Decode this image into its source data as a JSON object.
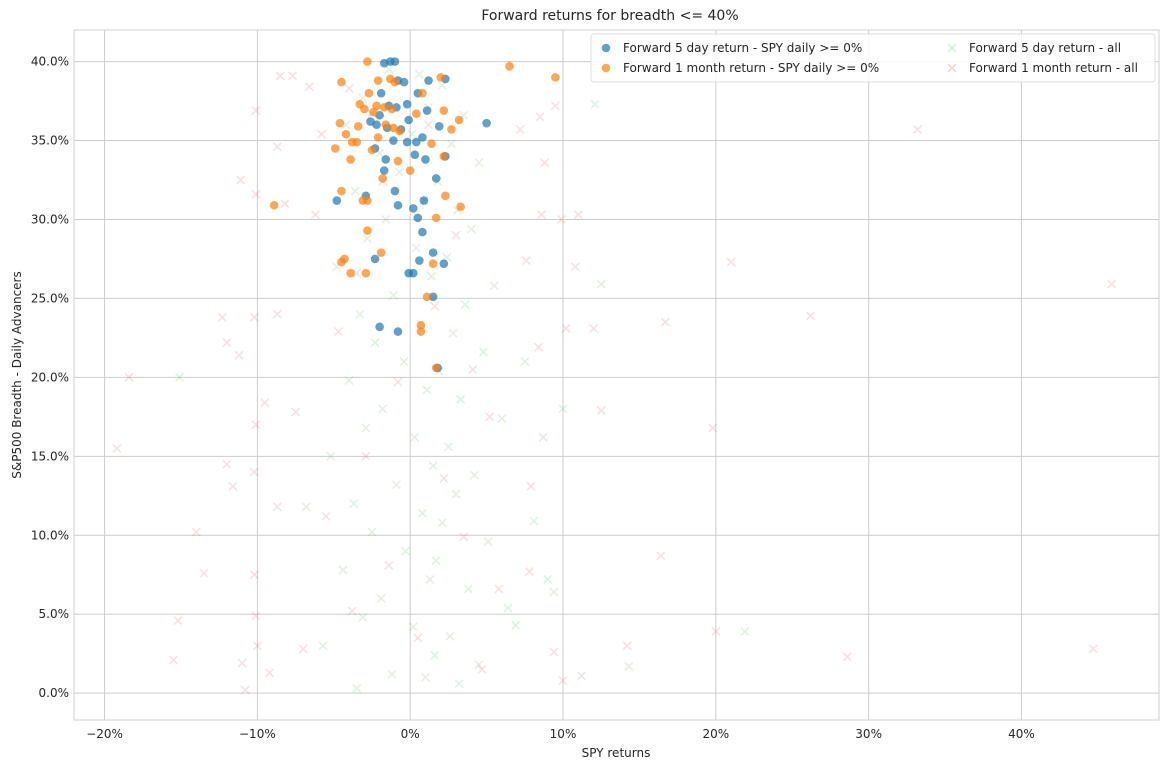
{
  "chart_data": {
    "type": "scatter",
    "title": "Forward returns for breadth <= 40%",
    "xlabel": "SPY returns",
    "ylabel": "S&P500 Breadth - Daily Advancers",
    "xlim": [
      -0.22,
      0.49
    ],
    "ylim": [
      -0.017,
      0.42
    ],
    "xticks": [
      -0.2,
      -0.1,
      0.0,
      0.1,
      0.2,
      0.3,
      0.4
    ],
    "xtick_labels": [
      "−20%",
      "−10%",
      "0%",
      "10%",
      "20%",
      "30%",
      "40%"
    ],
    "yticks": [
      0.0,
      0.05,
      0.1,
      0.15,
      0.2,
      0.25,
      0.3,
      0.35,
      0.4
    ],
    "ytick_labels": [
      "0.0%",
      "5.0%",
      "10.0%",
      "15.0%",
      "20.0%",
      "25.0%",
      "30.0%",
      "35.0%",
      "40.0%"
    ],
    "grid": true,
    "legend_position": "top-right",
    "series": [
      {
        "name": "Forward 5 day return - SPY daily >= 0%",
        "marker": "circle",
        "color": "#1f77b4",
        "points": [
          [
            -0.017,
            0.399
          ],
          [
            -0.013,
            0.4
          ],
          [
            -0.01,
            0.4
          ],
          [
            -0.008,
            0.388
          ],
          [
            -0.004,
            0.387
          ],
          [
            -0.019,
            0.38
          ],
          [
            0.005,
            0.38
          ],
          [
            -0.014,
            0.372
          ],
          [
            -0.009,
            0.371
          ],
          [
            -0.002,
            0.373
          ],
          [
            -0.02,
            0.366
          ],
          [
            0.011,
            0.369
          ],
          [
            0.05,
            0.361
          ],
          [
            -0.026,
            0.362
          ],
          [
            -0.022,
            0.36
          ],
          [
            -0.001,
            0.363
          ],
          [
            -0.006,
            0.357
          ],
          [
            -0.015,
            0.358
          ],
          [
            0.019,
            0.359
          ],
          [
            -0.011,
            0.35
          ],
          [
            -0.002,
            0.349
          ],
          [
            0.004,
            0.349
          ],
          [
            0.008,
            0.352
          ],
          [
            -0.023,
            0.345
          ],
          [
            -0.016,
            0.338
          ],
          [
            0.003,
            0.341
          ],
          [
            0.01,
            0.338
          ],
          [
            0.023,
            0.34
          ],
          [
            -0.017,
            0.331
          ],
          [
            0.017,
            0.326
          ],
          [
            -0.048,
            0.312
          ],
          [
            -0.029,
            0.315
          ],
          [
            -0.01,
            0.318
          ],
          [
            -0.008,
            0.309
          ],
          [
            0.002,
            0.307
          ],
          [
            0.009,
            0.312
          ],
          [
            0.005,
            0.301
          ],
          [
            0.008,
            0.292
          ],
          [
            -0.023,
            0.275
          ],
          [
            0.006,
            0.274
          ],
          [
            0.015,
            0.279
          ],
          [
            0.022,
            0.272
          ],
          [
            -0.001,
            0.266
          ],
          [
            0.002,
            0.266
          ],
          [
            0.015,
            0.251
          ],
          [
            -0.02,
            0.232
          ],
          [
            -0.008,
            0.229
          ],
          [
            0.018,
            0.206
          ],
          [
            0.023,
            0.389
          ],
          [
            0.012,
            0.388
          ]
        ]
      },
      {
        "name": "Forward 1 month return - SPY daily >= 0%",
        "marker": "circle",
        "color": "#ff7f0e",
        "points": [
          [
            -0.028,
            0.4
          ],
          [
            -0.045,
            0.387
          ],
          [
            -0.021,
            0.388
          ],
          [
            -0.013,
            0.389
          ],
          [
            -0.01,
            0.387
          ],
          [
            0.065,
            0.397
          ],
          [
            0.095,
            0.39
          ],
          [
            0.02,
            0.39
          ],
          [
            -0.027,
            0.38
          ],
          [
            0.008,
            0.38
          ],
          [
            -0.033,
            0.373
          ],
          [
            -0.022,
            0.372
          ],
          [
            -0.017,
            0.371
          ],
          [
            -0.012,
            0.37
          ],
          [
            -0.03,
            0.37
          ],
          [
            0.004,
            0.367
          ],
          [
            0.022,
            0.369
          ],
          [
            -0.024,
            0.368
          ],
          [
            0.032,
            0.363
          ],
          [
            -0.046,
            0.361
          ],
          [
            -0.034,
            0.359
          ],
          [
            -0.016,
            0.36
          ],
          [
            -0.011,
            0.358
          ],
          [
            -0.007,
            0.356
          ],
          [
            0.027,
            0.357
          ],
          [
            -0.042,
            0.354
          ],
          [
            -0.035,
            0.349
          ],
          [
            -0.038,
            0.349
          ],
          [
            -0.049,
            0.345
          ],
          [
            -0.025,
            0.344
          ],
          [
            -0.021,
            0.352
          ],
          [
            0.014,
            0.348
          ],
          [
            0.022,
            0.34
          ],
          [
            -0.039,
            0.338
          ],
          [
            -0.008,
            0.337
          ],
          [
            0.0,
            0.331
          ],
          [
            0.023,
            0.315
          ],
          [
            -0.045,
            0.318
          ],
          [
            -0.031,
            0.312
          ],
          [
            -0.028,
            0.312
          ],
          [
            -0.089,
            0.309
          ],
          [
            0.033,
            0.308
          ],
          [
            0.017,
            0.301
          ],
          [
            -0.028,
            0.293
          ],
          [
            -0.019,
            0.279
          ],
          [
            -0.043,
            0.275
          ],
          [
            -0.045,
            0.273
          ],
          [
            -0.039,
            0.266
          ],
          [
            -0.029,
            0.266
          ],
          [
            0.015,
            0.272
          ],
          [
            0.011,
            0.251
          ],
          [
            0.007,
            0.233
          ],
          [
            0.007,
            0.229
          ],
          [
            0.017,
            0.206
          ],
          [
            -0.018,
            0.326
          ]
        ]
      },
      {
        "name": "Forward 5 day return - all",
        "marker": "x",
        "color": "#2ca02c",
        "points": [
          [
            -0.014,
            0.395
          ],
          [
            0.006,
            0.392
          ],
          [
            0.021,
            0.385
          ],
          [
            -0.031,
            0.377
          ],
          [
            0.012,
            0.371
          ],
          [
            0.035,
            0.366
          ],
          [
            -0.042,
            0.36
          ],
          [
            0.001,
            0.354
          ],
          [
            0.027,
            0.348
          ],
          [
            -0.02,
            0.342
          ],
          [
            0.045,
            0.336
          ],
          [
            -0.007,
            0.33
          ],
          [
            0.018,
            0.324
          ],
          [
            -0.036,
            0.318
          ],
          [
            0.009,
            0.312
          ],
          [
            0.031,
            0.306
          ],
          [
            -0.016,
            0.3
          ],
          [
            0.04,
            0.294
          ],
          [
            -0.028,
            0.288
          ],
          [
            0.004,
            0.282
          ],
          [
            0.024,
            0.276
          ],
          [
            -0.048,
            0.27
          ],
          [
            0.014,
            0.264
          ],
          [
            0.055,
            0.258
          ],
          [
            -0.011,
            0.252
          ],
          [
            0.036,
            0.246
          ],
          [
            -0.033,
            0.24
          ],
          [
            0.007,
            0.234
          ],
          [
            0.028,
            0.228
          ],
          [
            -0.023,
            0.222
          ],
          [
            0.048,
            0.216
          ],
          [
            -0.004,
            0.21
          ],
          [
            0.019,
            0.204
          ],
          [
            -0.04,
            0.198
          ],
          [
            0.011,
            0.192
          ],
          [
            0.033,
            0.186
          ],
          [
            -0.018,
            0.18
          ],
          [
            0.06,
            0.174
          ],
          [
            -0.029,
            0.168
          ],
          [
            0.003,
            0.162
          ],
          [
            0.025,
            0.156
          ],
          [
            -0.052,
            0.15
          ],
          [
            0.015,
            0.144
          ],
          [
            0.042,
            0.138
          ],
          [
            -0.009,
            0.132
          ],
          [
            0.03,
            0.126
          ],
          [
            -0.037,
            0.12
          ],
          [
            0.008,
            0.114
          ],
          [
            0.021,
            0.108
          ],
          [
            -0.025,
            0.102
          ],
          [
            0.051,
            0.096
          ],
          [
            -0.003,
            0.09
          ],
          [
            0.017,
            0.084
          ],
          [
            -0.044,
            0.078
          ],
          [
            0.013,
            0.072
          ],
          [
            0.038,
            0.066
          ],
          [
            -0.019,
            0.06
          ],
          [
            0.064,
            0.054
          ],
          [
            -0.031,
            0.048
          ],
          [
            0.002,
            0.042
          ],
          [
            0.026,
            0.036
          ],
          [
            -0.057,
            0.03
          ],
          [
            0.016,
            0.024
          ],
          [
            0.045,
            0.018
          ],
          [
            -0.012,
            0.012
          ],
          [
            0.032,
            0.006
          ],
          [
            -0.035,
            0.003
          ],
          [
            0.01,
            0.01
          ],
          [
            0.069,
            0.043
          ],
          [
            -0.068,
            0.118
          ],
          [
            0.094,
            0.064
          ],
          [
            0.081,
            0.109
          ],
          [
            -0.151,
            0.2
          ],
          [
            0.1,
            0.18
          ],
          [
            0.121,
            0.373
          ],
          [
            0.125,
            0.259
          ],
          [
            0.143,
            0.017
          ],
          [
            0.219,
            0.039
          ],
          [
            0.09,
            0.072
          ],
          [
            0.075,
            0.21
          ]
        ]
      },
      {
        "name": "Forward 1 month return - all",
        "marker": "x",
        "color": "#d62728",
        "points": [
          [
            -0.085,
            0.391
          ],
          [
            -0.077,
            0.391
          ],
          [
            -0.066,
            0.384
          ],
          [
            -0.101,
            0.369
          ],
          [
            -0.058,
            0.354
          ],
          [
            -0.087,
            0.346
          ],
          [
            -0.111,
            0.325
          ],
          [
            -0.101,
            0.316
          ],
          [
            -0.082,
            0.31
          ],
          [
            -0.062,
            0.303
          ],
          [
            -0.123,
            0.238
          ],
          [
            -0.112,
            0.214
          ],
          [
            -0.102,
            0.238
          ],
          [
            -0.087,
            0.24
          ],
          [
            -0.184,
            0.2
          ],
          [
            -0.12,
            0.222
          ],
          [
            -0.095,
            0.184
          ],
          [
            -0.075,
            0.178
          ],
          [
            -0.101,
            0.17
          ],
          [
            -0.192,
            0.155
          ],
          [
            -0.12,
            0.145
          ],
          [
            -0.116,
            0.131
          ],
          [
            -0.102,
            0.14
          ],
          [
            -0.087,
            0.118
          ],
          [
            -0.14,
            0.102
          ],
          [
            -0.135,
            0.076
          ],
          [
            -0.102,
            0.075
          ],
          [
            -0.101,
            0.049
          ],
          [
            -0.152,
            0.046
          ],
          [
            -0.11,
            0.019
          ],
          [
            -0.155,
            0.021
          ],
          [
            -0.108,
            0.002
          ],
          [
            -0.092,
            0.013
          ],
          [
            -0.1,
            0.03
          ],
          [
            -0.07,
            0.028
          ],
          [
            0.085,
            0.365
          ],
          [
            0.095,
            0.372
          ],
          [
            0.072,
            0.357
          ],
          [
            0.088,
            0.336
          ],
          [
            0.11,
            0.303
          ],
          [
            0.099,
            0.3
          ],
          [
            0.086,
            0.303
          ],
          [
            0.076,
            0.274
          ],
          [
            0.108,
            0.27
          ],
          [
            0.12,
            0.231
          ],
          [
            0.102,
            0.231
          ],
          [
            0.084,
            0.219
          ],
          [
            0.087,
            0.162
          ],
          [
            0.125,
            0.179
          ],
          [
            0.079,
            0.131
          ],
          [
            0.078,
            0.077
          ],
          [
            0.164,
            0.087
          ],
          [
            0.1,
            0.008
          ],
          [
            0.112,
            0.011
          ],
          [
            0.142,
            0.03
          ],
          [
            0.2,
            0.039
          ],
          [
            0.286,
            0.023
          ],
          [
            0.447,
            0.028
          ],
          [
            0.459,
            0.259
          ],
          [
            0.332,
            0.357
          ],
          [
            0.262,
            0.239
          ],
          [
            0.21,
            0.273
          ],
          [
            0.167,
            0.235
          ],
          [
            0.198,
            0.168
          ],
          [
            0.094,
            0.026
          ],
          [
            -0.04,
            0.383
          ],
          [
            -0.025,
            0.367
          ],
          [
            0.012,
            0.36
          ],
          [
            -0.018,
            0.324
          ],
          [
            0.03,
            0.29
          ],
          [
            -0.035,
            0.266
          ],
          [
            0.016,
            0.245
          ],
          [
            -0.047,
            0.229
          ],
          [
            0.041,
            0.205
          ],
          [
            -0.008,
            0.197
          ],
          [
            0.052,
            0.175
          ],
          [
            -0.029,
            0.15
          ],
          [
            0.022,
            0.136
          ],
          [
            -0.055,
            0.112
          ],
          [
            0.035,
            0.099
          ],
          [
            -0.014,
            0.081
          ],
          [
            0.058,
            0.066
          ],
          [
            -0.038,
            0.052
          ],
          [
            0.005,
            0.035
          ],
          [
            0.047,
            0.015
          ]
        ]
      }
    ]
  }
}
